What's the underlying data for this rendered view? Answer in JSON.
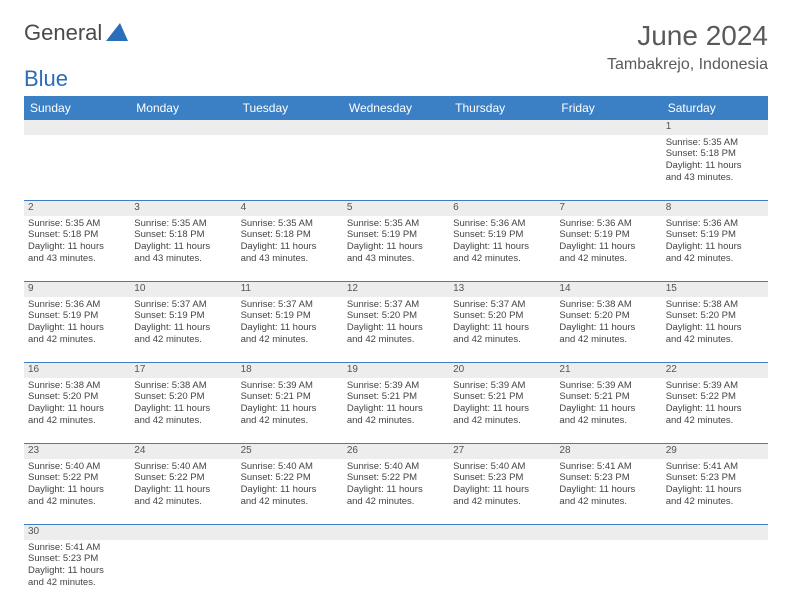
{
  "brand": {
    "word1": "General",
    "word2": "Blue",
    "logo_color": "#2a6db8"
  },
  "title": "June 2024",
  "location": "Tambakrejo, Indonesia",
  "colors": {
    "header_bg": "#3b7fc4",
    "daynum_bg": "#ededed",
    "border": "#3b7fc4"
  },
  "weekdays": [
    "Sunday",
    "Monday",
    "Tuesday",
    "Wednesday",
    "Thursday",
    "Friday",
    "Saturday"
  ],
  "weeks": [
    [
      null,
      null,
      null,
      null,
      null,
      null,
      {
        "n": "1",
        "sr": "Sunrise: 5:35 AM",
        "ss": "Sunset: 5:18 PM",
        "d1": "Daylight: 11 hours",
        "d2": "and 43 minutes."
      }
    ],
    [
      {
        "n": "2",
        "sr": "Sunrise: 5:35 AM",
        "ss": "Sunset: 5:18 PM",
        "d1": "Daylight: 11 hours",
        "d2": "and 43 minutes."
      },
      {
        "n": "3",
        "sr": "Sunrise: 5:35 AM",
        "ss": "Sunset: 5:18 PM",
        "d1": "Daylight: 11 hours",
        "d2": "and 43 minutes."
      },
      {
        "n": "4",
        "sr": "Sunrise: 5:35 AM",
        "ss": "Sunset: 5:18 PM",
        "d1": "Daylight: 11 hours",
        "d2": "and 43 minutes."
      },
      {
        "n": "5",
        "sr": "Sunrise: 5:35 AM",
        "ss": "Sunset: 5:19 PM",
        "d1": "Daylight: 11 hours",
        "d2": "and 43 minutes."
      },
      {
        "n": "6",
        "sr": "Sunrise: 5:36 AM",
        "ss": "Sunset: 5:19 PM",
        "d1": "Daylight: 11 hours",
        "d2": "and 42 minutes."
      },
      {
        "n": "7",
        "sr": "Sunrise: 5:36 AM",
        "ss": "Sunset: 5:19 PM",
        "d1": "Daylight: 11 hours",
        "d2": "and 42 minutes."
      },
      {
        "n": "8",
        "sr": "Sunrise: 5:36 AM",
        "ss": "Sunset: 5:19 PM",
        "d1": "Daylight: 11 hours",
        "d2": "and 42 minutes."
      }
    ],
    [
      {
        "n": "9",
        "sr": "Sunrise: 5:36 AM",
        "ss": "Sunset: 5:19 PM",
        "d1": "Daylight: 11 hours",
        "d2": "and 42 minutes."
      },
      {
        "n": "10",
        "sr": "Sunrise: 5:37 AM",
        "ss": "Sunset: 5:19 PM",
        "d1": "Daylight: 11 hours",
        "d2": "and 42 minutes."
      },
      {
        "n": "11",
        "sr": "Sunrise: 5:37 AM",
        "ss": "Sunset: 5:19 PM",
        "d1": "Daylight: 11 hours",
        "d2": "and 42 minutes."
      },
      {
        "n": "12",
        "sr": "Sunrise: 5:37 AM",
        "ss": "Sunset: 5:20 PM",
        "d1": "Daylight: 11 hours",
        "d2": "and 42 minutes."
      },
      {
        "n": "13",
        "sr": "Sunrise: 5:37 AM",
        "ss": "Sunset: 5:20 PM",
        "d1": "Daylight: 11 hours",
        "d2": "and 42 minutes."
      },
      {
        "n": "14",
        "sr": "Sunrise: 5:38 AM",
        "ss": "Sunset: 5:20 PM",
        "d1": "Daylight: 11 hours",
        "d2": "and 42 minutes."
      },
      {
        "n": "15",
        "sr": "Sunrise: 5:38 AM",
        "ss": "Sunset: 5:20 PM",
        "d1": "Daylight: 11 hours",
        "d2": "and 42 minutes."
      }
    ],
    [
      {
        "n": "16",
        "sr": "Sunrise: 5:38 AM",
        "ss": "Sunset: 5:20 PM",
        "d1": "Daylight: 11 hours",
        "d2": "and 42 minutes."
      },
      {
        "n": "17",
        "sr": "Sunrise: 5:38 AM",
        "ss": "Sunset: 5:20 PM",
        "d1": "Daylight: 11 hours",
        "d2": "and 42 minutes."
      },
      {
        "n": "18",
        "sr": "Sunrise: 5:39 AM",
        "ss": "Sunset: 5:21 PM",
        "d1": "Daylight: 11 hours",
        "d2": "and 42 minutes."
      },
      {
        "n": "19",
        "sr": "Sunrise: 5:39 AM",
        "ss": "Sunset: 5:21 PM",
        "d1": "Daylight: 11 hours",
        "d2": "and 42 minutes."
      },
      {
        "n": "20",
        "sr": "Sunrise: 5:39 AM",
        "ss": "Sunset: 5:21 PM",
        "d1": "Daylight: 11 hours",
        "d2": "and 42 minutes."
      },
      {
        "n": "21",
        "sr": "Sunrise: 5:39 AM",
        "ss": "Sunset: 5:21 PM",
        "d1": "Daylight: 11 hours",
        "d2": "and 42 minutes."
      },
      {
        "n": "22",
        "sr": "Sunrise: 5:39 AM",
        "ss": "Sunset: 5:22 PM",
        "d1": "Daylight: 11 hours",
        "d2": "and 42 minutes."
      }
    ],
    [
      {
        "n": "23",
        "sr": "Sunrise: 5:40 AM",
        "ss": "Sunset: 5:22 PM",
        "d1": "Daylight: 11 hours",
        "d2": "and 42 minutes."
      },
      {
        "n": "24",
        "sr": "Sunrise: 5:40 AM",
        "ss": "Sunset: 5:22 PM",
        "d1": "Daylight: 11 hours",
        "d2": "and 42 minutes."
      },
      {
        "n": "25",
        "sr": "Sunrise: 5:40 AM",
        "ss": "Sunset: 5:22 PM",
        "d1": "Daylight: 11 hours",
        "d2": "and 42 minutes."
      },
      {
        "n": "26",
        "sr": "Sunrise: 5:40 AM",
        "ss": "Sunset: 5:22 PM",
        "d1": "Daylight: 11 hours",
        "d2": "and 42 minutes."
      },
      {
        "n": "27",
        "sr": "Sunrise: 5:40 AM",
        "ss": "Sunset: 5:23 PM",
        "d1": "Daylight: 11 hours",
        "d2": "and 42 minutes."
      },
      {
        "n": "28",
        "sr": "Sunrise: 5:41 AM",
        "ss": "Sunset: 5:23 PM",
        "d1": "Daylight: 11 hours",
        "d2": "and 42 minutes."
      },
      {
        "n": "29",
        "sr": "Sunrise: 5:41 AM",
        "ss": "Sunset: 5:23 PM",
        "d1": "Daylight: 11 hours",
        "d2": "and 42 minutes."
      }
    ],
    [
      {
        "n": "30",
        "sr": "Sunrise: 5:41 AM",
        "ss": "Sunset: 5:23 PM",
        "d1": "Daylight: 11 hours",
        "d2": "and 42 minutes."
      },
      null,
      null,
      null,
      null,
      null,
      null
    ]
  ]
}
